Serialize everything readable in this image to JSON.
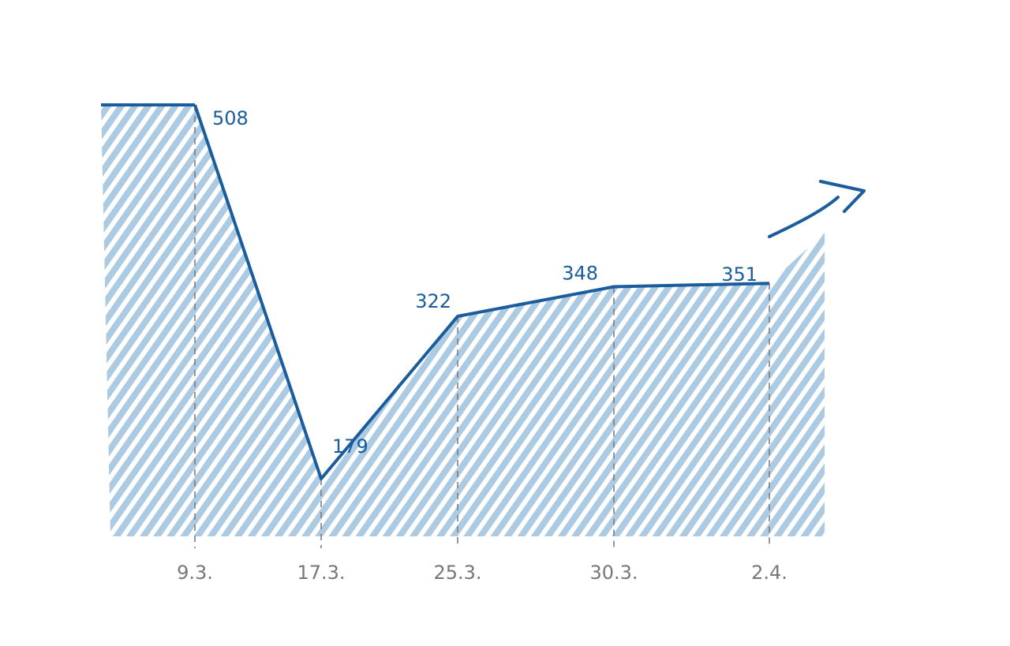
{
  "chart_data": {
    "type": "line",
    "categories": [
      "9.3.",
      "17.3.",
      "25.3.",
      "30.3.",
      "2.4."
    ],
    "values": [
      508,
      179,
      322,
      348,
      351
    ],
    "color": "#1a5c9c",
    "area_color": "#a8c7df"
  }
}
